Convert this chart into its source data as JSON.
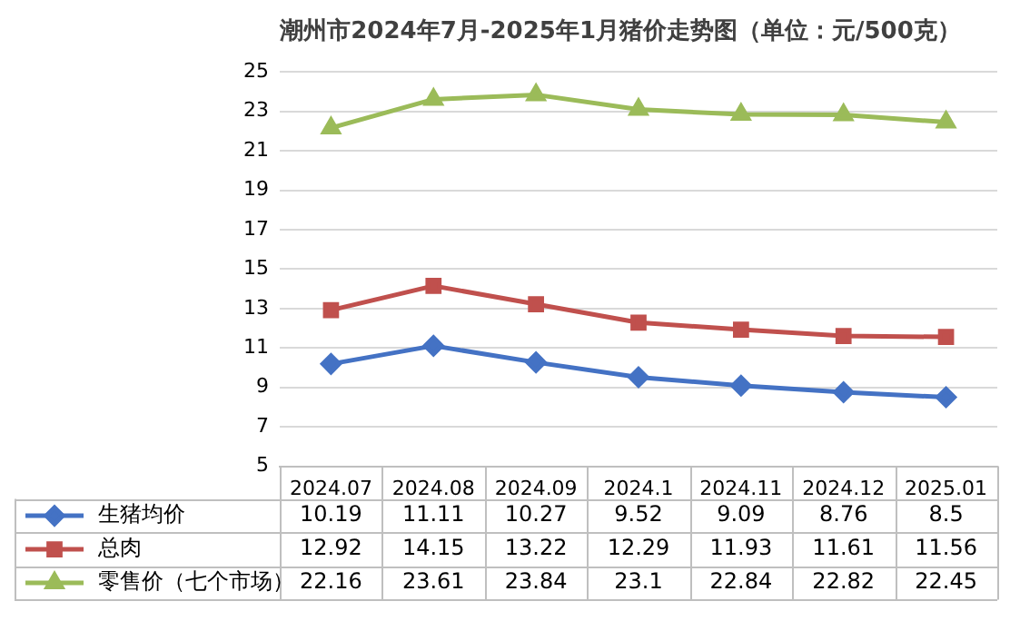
{
  "chart_data": {
    "type": "line",
    "title": "潮州市2024年7月-2025年1月猪价走势图（单位：元/500克）",
    "categories": [
      "2024.07",
      "2024.08",
      "2024.09",
      "2024.1",
      "2024.11",
      "2024.12",
      "2025.01"
    ],
    "series": [
      {
        "name": "生猪均价",
        "color": "#4472c4",
        "marker": "diamond",
        "values": [
          10.19,
          11.11,
          10.27,
          9.52,
          9.09,
          8.76,
          8.5
        ]
      },
      {
        "name": "总肉",
        "color": "#c0504d",
        "marker": "square",
        "values": [
          12.92,
          14.15,
          13.22,
          12.29,
          11.93,
          11.61,
          11.56
        ]
      },
      {
        "name": "零售价（七个市场）",
        "color": "#9bbb59",
        "marker": "triangle",
        "values": [
          22.16,
          23.61,
          23.84,
          23.1,
          22.84,
          22.82,
          22.45
        ]
      }
    ],
    "ylim": [
      5,
      25
    ],
    "yticks": [
      5,
      7,
      9,
      11,
      13,
      15,
      17,
      19,
      21,
      23,
      25
    ],
    "grid": "y",
    "legend": "bottom",
    "data_labels": true
  }
}
